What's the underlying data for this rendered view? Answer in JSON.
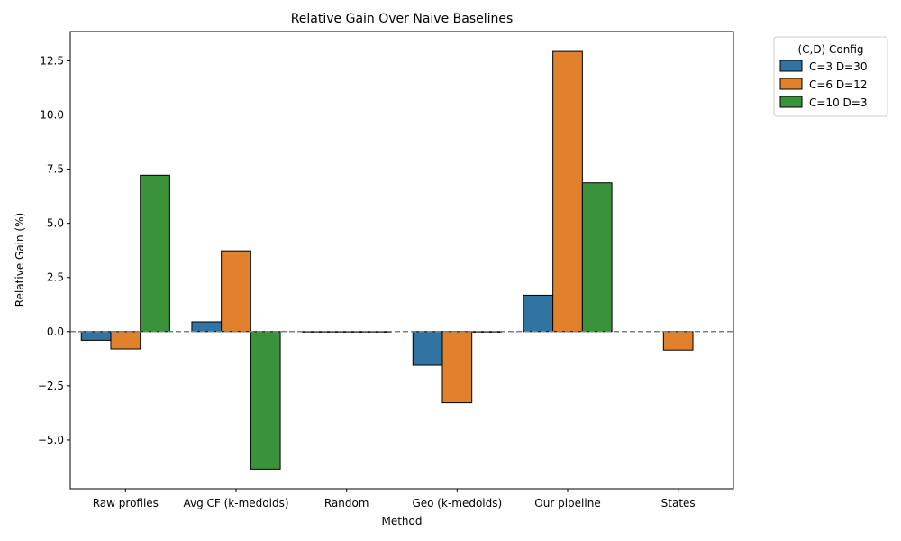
{
  "chart_data": {
    "type": "bar",
    "title": "Relative Gain Over Naive Baselines",
    "xlabel": "Method",
    "ylabel": "Relative Gain (%)",
    "ylim": [
      -7.25,
      13.85
    ],
    "yticks": [
      -5.0,
      -2.5,
      0.0,
      2.5,
      5.0,
      7.5,
      10.0,
      12.5
    ],
    "ytick_labels": [
      "−5.0",
      "−2.5",
      "0.0",
      "2.5",
      "5.0",
      "7.5",
      "10.0",
      "12.5"
    ],
    "categories": [
      "Raw profiles",
      "Avg CF (k-medoids)",
      "Random",
      "Geo (k-medoids)",
      "Our pipeline",
      "States"
    ],
    "series": [
      {
        "name": "C=3 D=30",
        "color": "#3274a1",
        "values": [
          -0.4,
          0.45,
          0.0,
          -1.55,
          1.68,
          null
        ]
      },
      {
        "name": "C=6 D=12",
        "color": "#e1812c",
        "values": [
          -0.8,
          3.73,
          0.0,
          -3.28,
          12.93,
          -0.85
        ]
      },
      {
        "name": "C=10 D=3",
        "color": "#3a923a",
        "values": [
          7.22,
          -6.35,
          0.0,
          0.0,
          6.87,
          null
        ]
      }
    ],
    "reference_line": {
      "y": 0.0,
      "style": "dashed",
      "color": "#808080"
    },
    "legend": {
      "title": "(C,D) Config",
      "placement": "outside-top-right"
    },
    "grid": false
  }
}
